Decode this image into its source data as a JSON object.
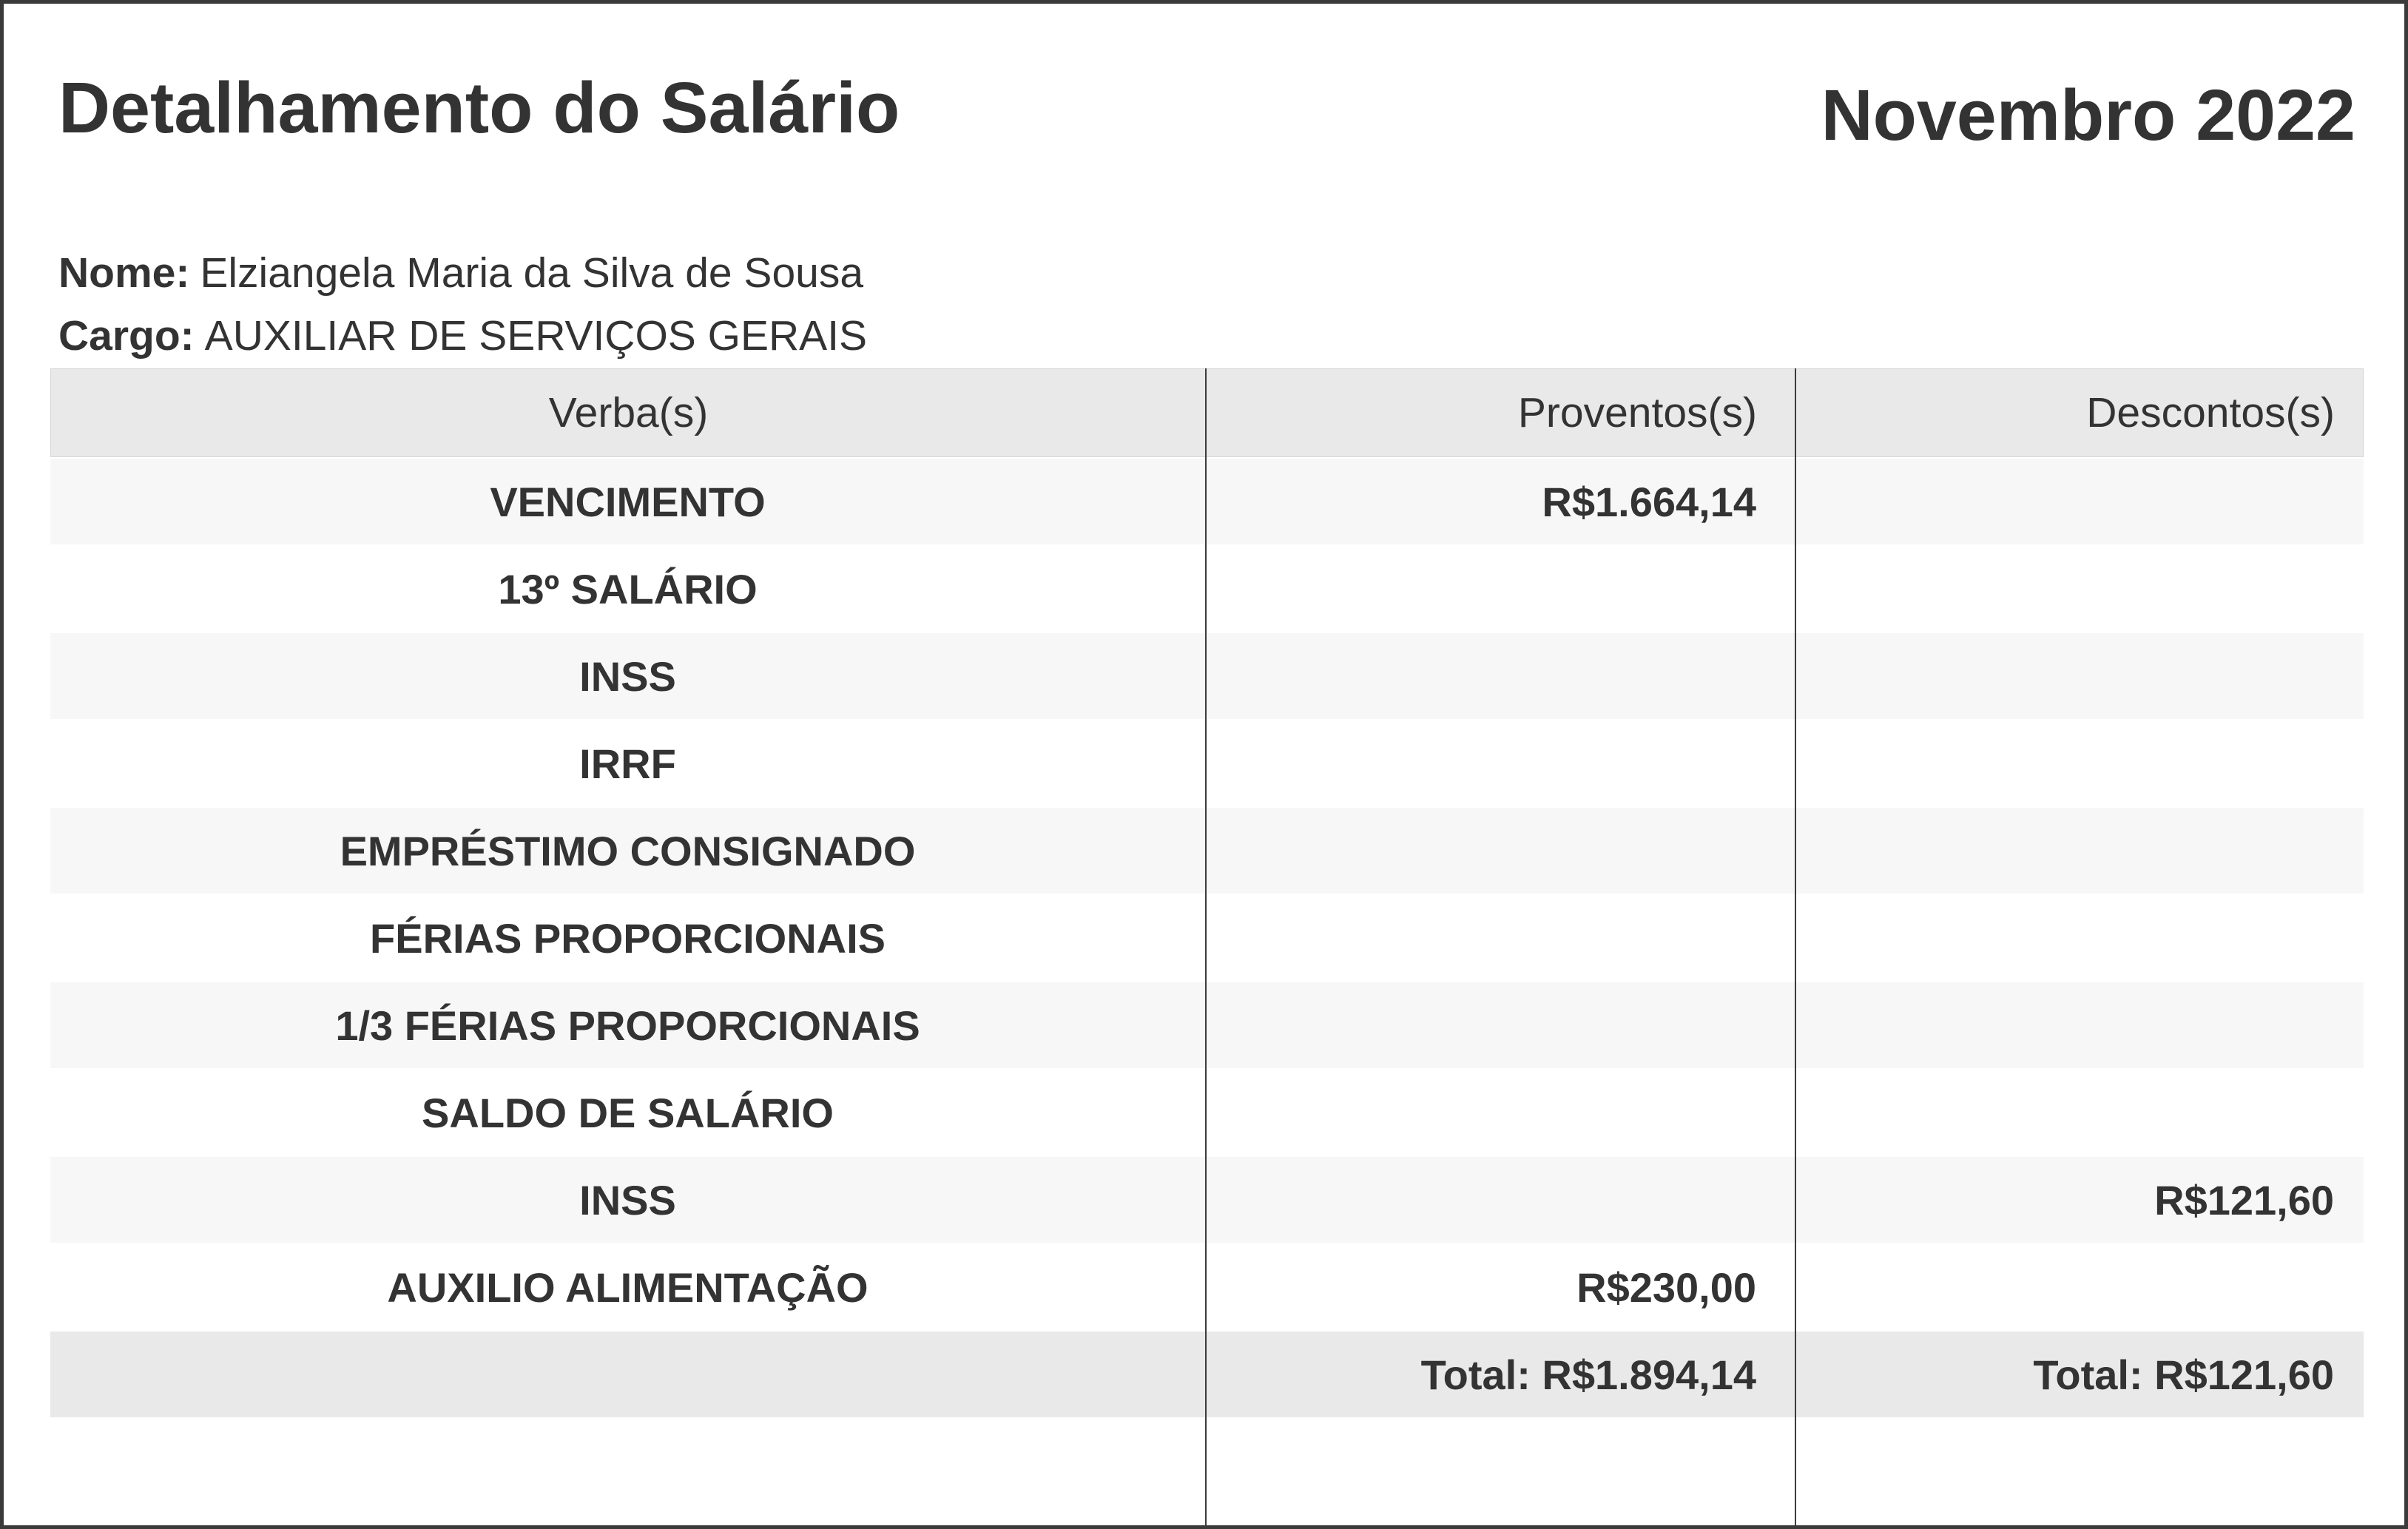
{
  "page": {
    "title": "Detalhamento do Salário",
    "period": "Novembro 2022"
  },
  "employee": {
    "name_label": "Nome:",
    "name": "Elziangela Maria da Silva de Sousa",
    "role_label": "Cargo:",
    "role": "AUXILIAR DE SERVIÇOS GERAIS"
  },
  "table": {
    "columns": [
      "Verba(s)",
      "Proventos(s)",
      "Descontos(s)"
    ],
    "rows": [
      {
        "verba": "VENCIMENTO",
        "proventos": "R$1.664,14",
        "descontos": ""
      },
      {
        "verba": "13º SALÁRIO",
        "proventos": "",
        "descontos": ""
      },
      {
        "verba": "INSS",
        "proventos": "",
        "descontos": ""
      },
      {
        "verba": "IRRF",
        "proventos": "",
        "descontos": ""
      },
      {
        "verba": "EMPRÉSTIMO CONSIGNADO",
        "proventos": "",
        "descontos": ""
      },
      {
        "verba": "FÉRIAS PROPORCIONAIS",
        "proventos": "",
        "descontos": ""
      },
      {
        "verba": "1/3 FÉRIAS PROPORCIONAIS",
        "proventos": "",
        "descontos": ""
      },
      {
        "verba": "SALDO DE SALÁRIO",
        "proventos": "",
        "descontos": ""
      },
      {
        "verba": "INSS",
        "proventos": "",
        "descontos": "R$121,60"
      },
      {
        "verba": "AUXILIO ALIMENTAÇÃO",
        "proventos": "R$230,00",
        "descontos": ""
      }
    ],
    "totals": {
      "proventos": "Total: R$1.894,14",
      "descontos": "Total: R$121,60"
    }
  },
  "colors": {
    "text": "#333333",
    "page_border": "#3a3a3a",
    "header_bg": "#e9e9e9",
    "row_alt_bg": "#f7f7f7",
    "total_bg": "#e9e9e9",
    "column_divider": "#3c3c3c"
  }
}
